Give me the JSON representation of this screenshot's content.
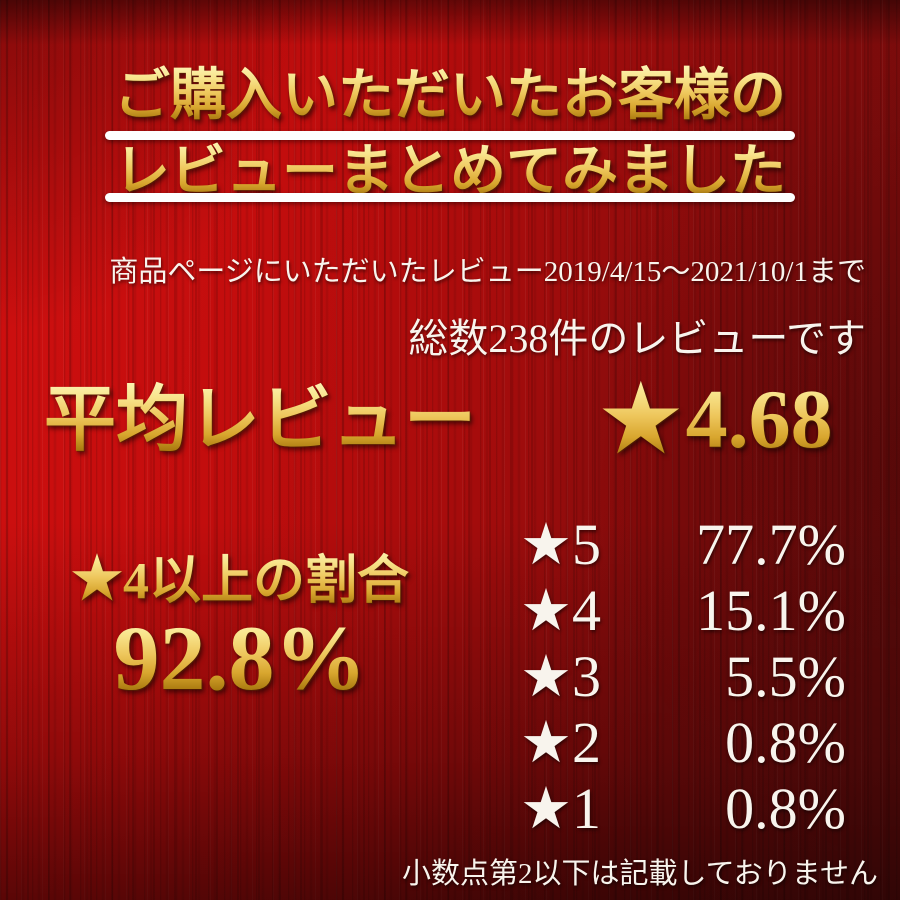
{
  "title": {
    "line1": "ご購入いただいたお客様の",
    "line2": "レビューまとめてみました"
  },
  "subtitle": {
    "line1": "商品ページにいただいたレビュー2019/4/15〜2021/10/1まで",
    "line2": "総数238件のレビューです"
  },
  "average": {
    "label": "平均レビュー",
    "star_icon": "★",
    "value": "4.68"
  },
  "share": {
    "star_icon": "★",
    "label": "4以上の割合",
    "value": "92.8%"
  },
  "breakdown": {
    "rows": [
      {
        "star": "★",
        "level": "5",
        "percent": "77.7%"
      },
      {
        "star": "★",
        "level": "4",
        "percent": "15.1%"
      },
      {
        "star": "★",
        "level": "3",
        "percent": "5.5%"
      },
      {
        "star": "★",
        "level": "2",
        "percent": "0.8%"
      },
      {
        "star": "★",
        "level": "1",
        "percent": "0.8%"
      }
    ]
  },
  "footnote": "小数点第2以下は記載しておりません",
  "colors": {
    "background_red_bright": "#c90e0e",
    "background_red_dark": "#6e0c0c",
    "gold_light": "#fdf5b8",
    "gold_mid": "#eec75d",
    "gold_dark": "#a9790f",
    "text_white": "#f8f4ed",
    "underline_white": "#fefefe"
  },
  "chart_data": {
    "type": "bar",
    "title": "ご購入いただいたお客様のレビューまとめてみました",
    "subtitle": "商品ページにいただいたレビュー2019/4/15〜2021/10/1まで",
    "total_reviews": 238,
    "average_rating": 4.68,
    "share_4_stars_or_above_percent": 92.8,
    "categories": [
      "★5",
      "★4",
      "★3",
      "★2",
      "★1"
    ],
    "values": [
      77.7,
      15.1,
      5.5,
      0.8,
      0.8
    ],
    "unit": "%",
    "footnote": "小数点第2以下は記載しておりません"
  }
}
